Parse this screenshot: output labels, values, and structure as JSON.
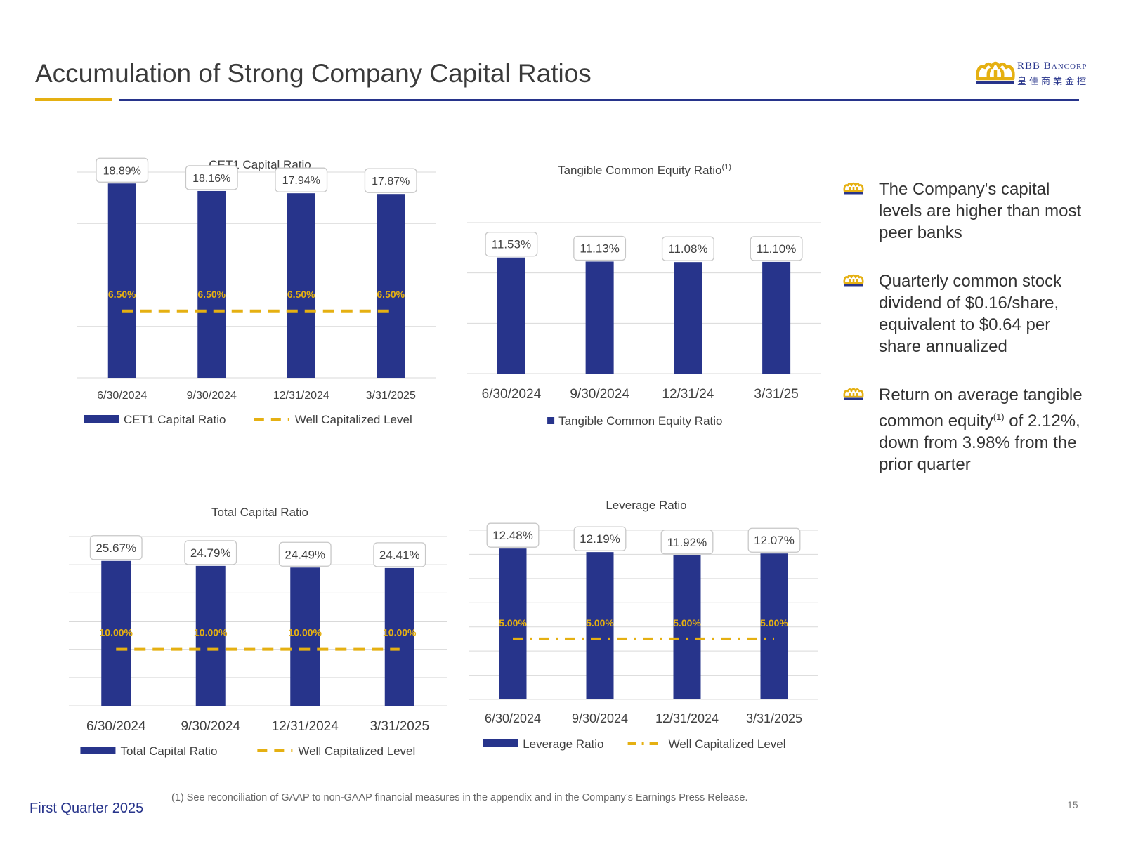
{
  "page": {
    "title": "Accumulation of Strong Company Capital Ratios",
    "logo_text": "RBB Bancorp",
    "logo_chinese": "皇佳商業金控",
    "footer_left": "First Quarter 2025",
    "footnote": "(1)  See reconciliation of GAAP to non-GAAP financial measures in the appendix and in the Company’s Earnings Press Release.",
    "page_number": "15",
    "colors": {
      "navy": "#27348b",
      "gold": "#e5b012",
      "grid": "#d9d9d9"
    }
  },
  "bullets": [
    {
      "text": "The Company's capital levels are higher than most peer banks",
      "icon": "crown-icon"
    },
    {
      "text": "Quarterly common stock dividend of $0.16/share, equivalent to $0.64 per share annualized",
      "icon": "crown-icon"
    },
    {
      "pre": "Return on average tangible common equity",
      "sup": "(1)",
      "post": " of 2.12%, down from 3.98% from the prior quarter",
      "icon": "crown-icon"
    }
  ],
  "chart_data": [
    {
      "id": "cet1",
      "type": "bar",
      "title": "CET1 Capital Ratio",
      "title_sup": "",
      "categories": [
        "6/30/2024",
        "9/30/2024",
        "12/31/2024",
        "3/31/2025"
      ],
      "series": [
        {
          "name": "CET1 Capital Ratio",
          "kind": "bar",
          "values": [
            18.89,
            18.16,
            17.94,
            17.87
          ],
          "labels": [
            "18.89%",
            "18.16%",
            "17.94%",
            "17.87%"
          ]
        },
        {
          "name": "Well Capitalized Level",
          "kind": "line",
          "style": "dash",
          "values": [
            6.5,
            6.5,
            6.5,
            6.5
          ],
          "labels": [
            "6.50%",
            "6.50%",
            "6.50%",
            "6.50%"
          ]
        }
      ],
      "ylim": [
        0,
        20
      ],
      "legend": "bottom"
    },
    {
      "id": "tce",
      "type": "bar",
      "title": "Tangible Common Equity Ratio",
      "title_sup": "(1)",
      "categories": [
        "6/30/2024",
        "9/30/2024",
        "12/31/24",
        "3/31/25"
      ],
      "series": [
        {
          "name": "Tangible Common Equity Ratio",
          "kind": "bar",
          "values": [
            11.53,
            11.13,
            11.08,
            11.1
          ],
          "labels": [
            "11.53%",
            "11.13%",
            "11.08%",
            "11.10%"
          ]
        }
      ],
      "ylim": [
        0,
        15
      ],
      "legend": "bottom"
    },
    {
      "id": "total",
      "type": "bar",
      "title": "Total Capital Ratio",
      "title_sup": "",
      "categories": [
        "6/30/2024",
        "9/30/2024",
        "12/31/2024",
        "3/31/2025"
      ],
      "series": [
        {
          "name": "Total Capital Ratio",
          "kind": "bar",
          "values": [
            25.67,
            24.79,
            24.49,
            24.41
          ],
          "labels": [
            "25.67%",
            "24.79%",
            "24.49%",
            "24.41%"
          ]
        },
        {
          "name": "Well Capitalized Level",
          "kind": "line",
          "style": "dash",
          "values": [
            10,
            10,
            10,
            10
          ],
          "labels": [
            "10.00%",
            "10.00%",
            "10.00%",
            "10.00%"
          ]
        }
      ],
      "ylim": [
        0,
        30
      ],
      "legend": "bottom"
    },
    {
      "id": "leverage",
      "type": "bar",
      "title": "Leverage Ratio",
      "title_sup": "",
      "categories": [
        "6/30/2024",
        "9/30/2024",
        "12/31/2024",
        "3/31/2025"
      ],
      "series": [
        {
          "name": "Leverage Ratio",
          "kind": "bar",
          "values": [
            12.48,
            12.19,
            11.92,
            12.07
          ],
          "labels": [
            "12.48%",
            "12.19%",
            "11.92%",
            "12.07%"
          ]
        },
        {
          "name": "Well Capitalized Level",
          "kind": "line",
          "style": "dashdot",
          "values": [
            5,
            5,
            5,
            5
          ],
          "labels": [
            "5.00%",
            "5.00%",
            "5.00%",
            "5.00%"
          ]
        }
      ],
      "ylim": [
        0,
        14
      ],
      "legend": "bottom"
    }
  ]
}
